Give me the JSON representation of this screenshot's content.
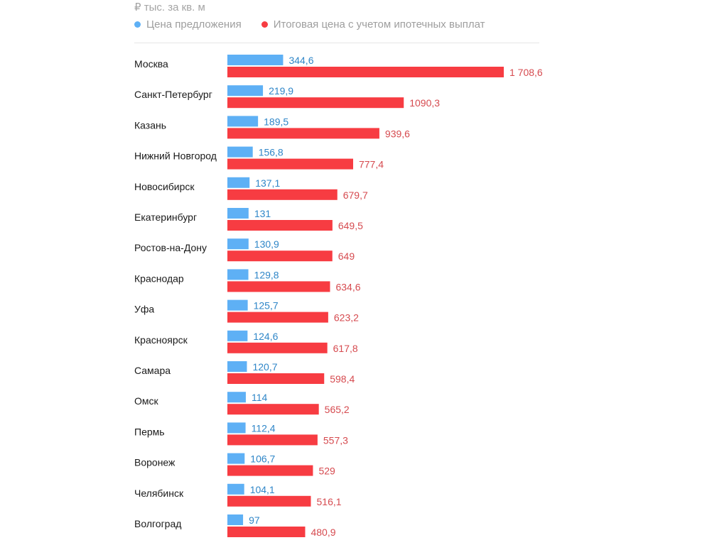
{
  "chart_data": {
    "type": "bar",
    "orientation": "horizontal",
    "unit_label": "₽ тыс. за кв. м",
    "categories": [
      "Москва",
      "Санкт-Петербург",
      "Казань",
      "Нижний Новгород",
      "Новосибирск",
      "Екатеринбург",
      "Ростов-на-Дону",
      "Краснодар",
      "Уфа",
      "Красноярск",
      "Самара",
      "Омск",
      "Пермь",
      "Воронеж",
      "Челябинск",
      "Волгоград"
    ],
    "series": [
      {
        "name": "Цена предложения",
        "color": "#5eb0f5",
        "label_color": "#2f86c8",
        "values": [
          344.6,
          219.9,
          189.5,
          156.8,
          137.1,
          131,
          130.9,
          129.8,
          125.7,
          124.6,
          120.7,
          114,
          112.4,
          106.7,
          104.1,
          97
        ],
        "labels": [
          "344,6",
          "219,9",
          "189,5",
          "156,8",
          "137,1",
          "131",
          "130,9",
          "129,8",
          "125,7",
          "124,6",
          "120,7",
          "114",
          "112,4",
          "106,7",
          "104,1",
          "97"
        ]
      },
      {
        "name": "Итоговая цена с учетом ипотечных выплат",
        "color": "#f73c42",
        "label_color": "#d64a4f",
        "values": [
          1708.6,
          1090.3,
          939.6,
          777.4,
          679.7,
          649.5,
          649,
          634.6,
          623.2,
          617.8,
          598.4,
          565.2,
          557.3,
          529,
          516.1,
          480.9
        ],
        "labels": [
          "1 708,6",
          "1090,3",
          "939,6",
          "777,4",
          "679,7",
          "649,5",
          "649",
          "634,6",
          "623,2",
          "617,8",
          "598,4",
          "565,2",
          "557,3",
          "529",
          "516,1",
          "480,9"
        ]
      }
    ],
    "xlim": [
      0,
      1708.6
    ],
    "legend": "top-left",
    "grid": false
  }
}
